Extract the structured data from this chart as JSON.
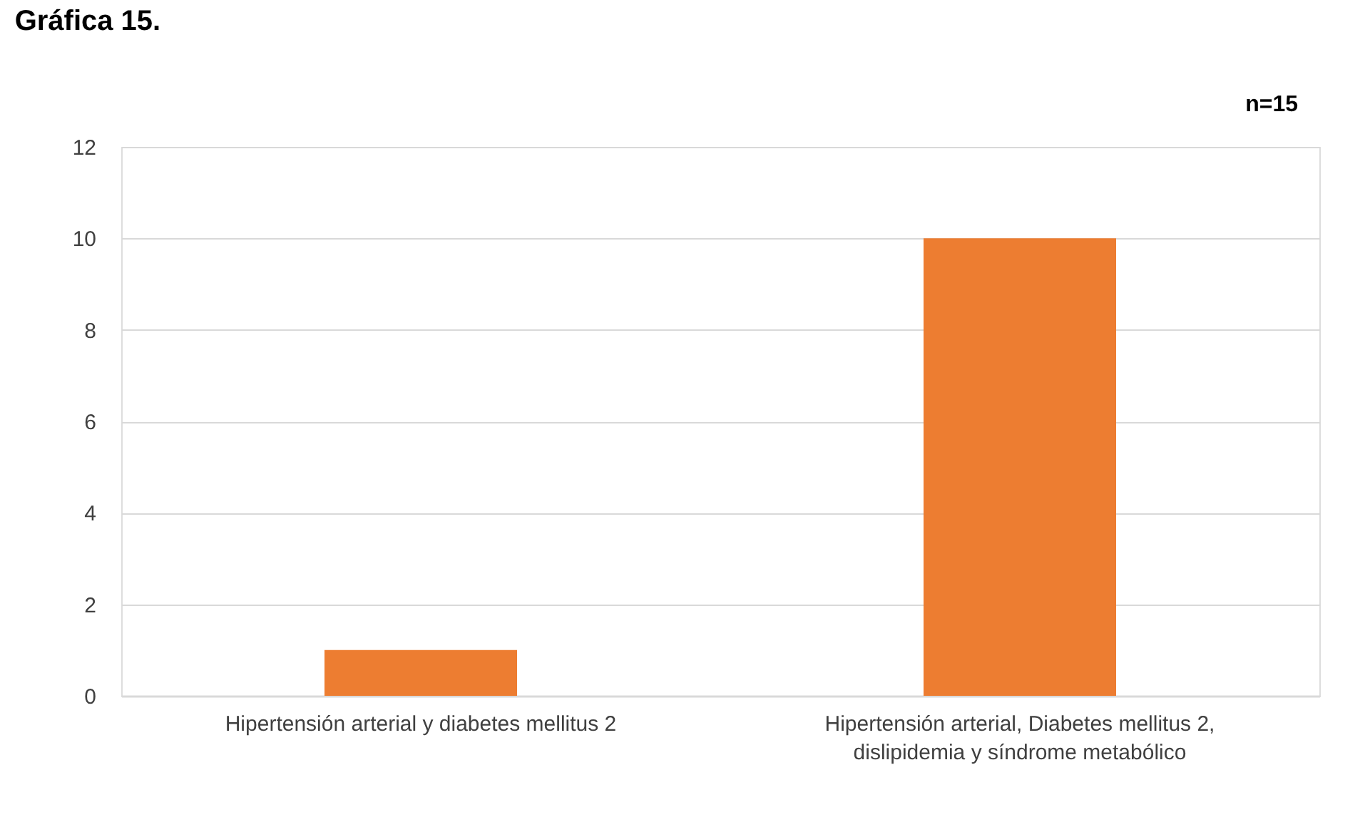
{
  "chart_data": {
    "type": "bar",
    "title": "Gráfica 15.",
    "categories": [
      "Hipertensión arterial y diabetes mellitus 2",
      "Hipertensión arterial, Diabetes mellitus 2,\ndislipidemia y síndrome metabólico"
    ],
    "values": [
      1,
      10
    ],
    "color": "#ed7d31",
    "ylim": [
      0,
      12
    ],
    "yticks": [
      0,
      2,
      4,
      6,
      8,
      10,
      12
    ],
    "grid": "y",
    "annotations": [
      "n=15"
    ]
  }
}
